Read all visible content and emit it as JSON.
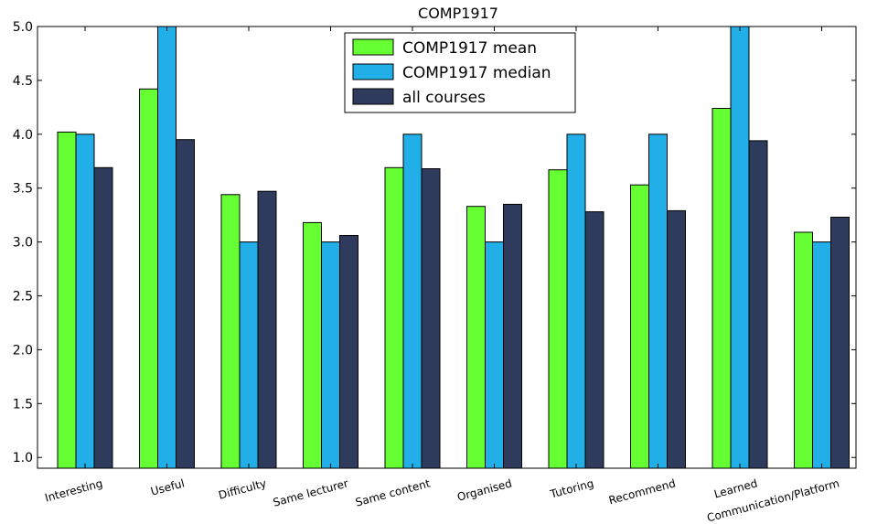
{
  "chart_data": {
    "type": "bar",
    "title": "COMP1917",
    "xlabel": "",
    "ylabel": "",
    "ylim": [
      0.9,
      5.0
    ],
    "yticks": [
      "1.0",
      "1.5",
      "2.0",
      "2.5",
      "3.0",
      "3.5",
      "4.0",
      "4.5",
      "5.0"
    ],
    "grid": false,
    "legend_position": "top-center",
    "categories": [
      "Interesting",
      "Useful",
      "Difficulty",
      "Same lecturer",
      "Same content",
      "Organised",
      "Tutoring",
      "Recommend",
      "Learned",
      "Communication/Platform"
    ],
    "series": [
      {
        "name": "COMP1917 mean",
        "color": "#66ff33",
        "values": [
          4.02,
          4.42,
          3.44,
          3.18,
          3.69,
          3.33,
          3.67,
          3.53,
          4.24,
          3.09
        ]
      },
      {
        "name": "COMP1917 median",
        "color": "#22aee6",
        "values": [
          4.0,
          5.0,
          3.0,
          3.0,
          4.0,
          3.0,
          4.0,
          4.0,
          5.0,
          3.0
        ]
      },
      {
        "name": "all courses",
        "color": "#2e3b5c",
        "values": [
          3.69,
          3.95,
          3.47,
          3.06,
          3.68,
          3.35,
          3.28,
          3.29,
          3.94,
          3.23
        ]
      }
    ]
  }
}
